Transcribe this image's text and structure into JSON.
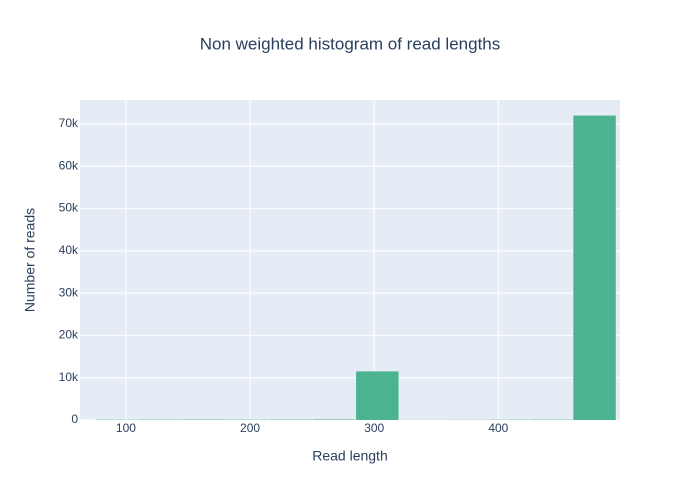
{
  "chart_data": {
    "type": "histogram",
    "title": "Non weighted histogram of read lengths",
    "x_label": "Read length",
    "y_label": "Number of reads",
    "bins": [
      75,
      110,
      145,
      180,
      215,
      250,
      285,
      320,
      355,
      390,
      425,
      460,
      495
    ],
    "values": [
      60,
      80,
      100,
      70,
      90,
      120,
      11500,
      40,
      50,
      60,
      80,
      72000
    ],
    "color": "#4cb391",
    "xlim": [
      63,
      498
    ],
    "xticks": [
      100,
      200,
      300,
      400
    ],
    "ylim": [
      0,
      75676
    ],
    "yticks": [
      0,
      {
        "value": 10000,
        "label": "10k"
      },
      {
        "value": 20000,
        "label": "20k"
      },
      {
        "value": 30000,
        "label": "30k"
      },
      {
        "value": 40000,
        "label": "40k"
      },
      {
        "value": 50000,
        "label": "50k"
      },
      {
        "value": 60000,
        "label": "60k"
      },
      {
        "value": 70000,
        "label": "70k"
      }
    ],
    "grid": true
  }
}
